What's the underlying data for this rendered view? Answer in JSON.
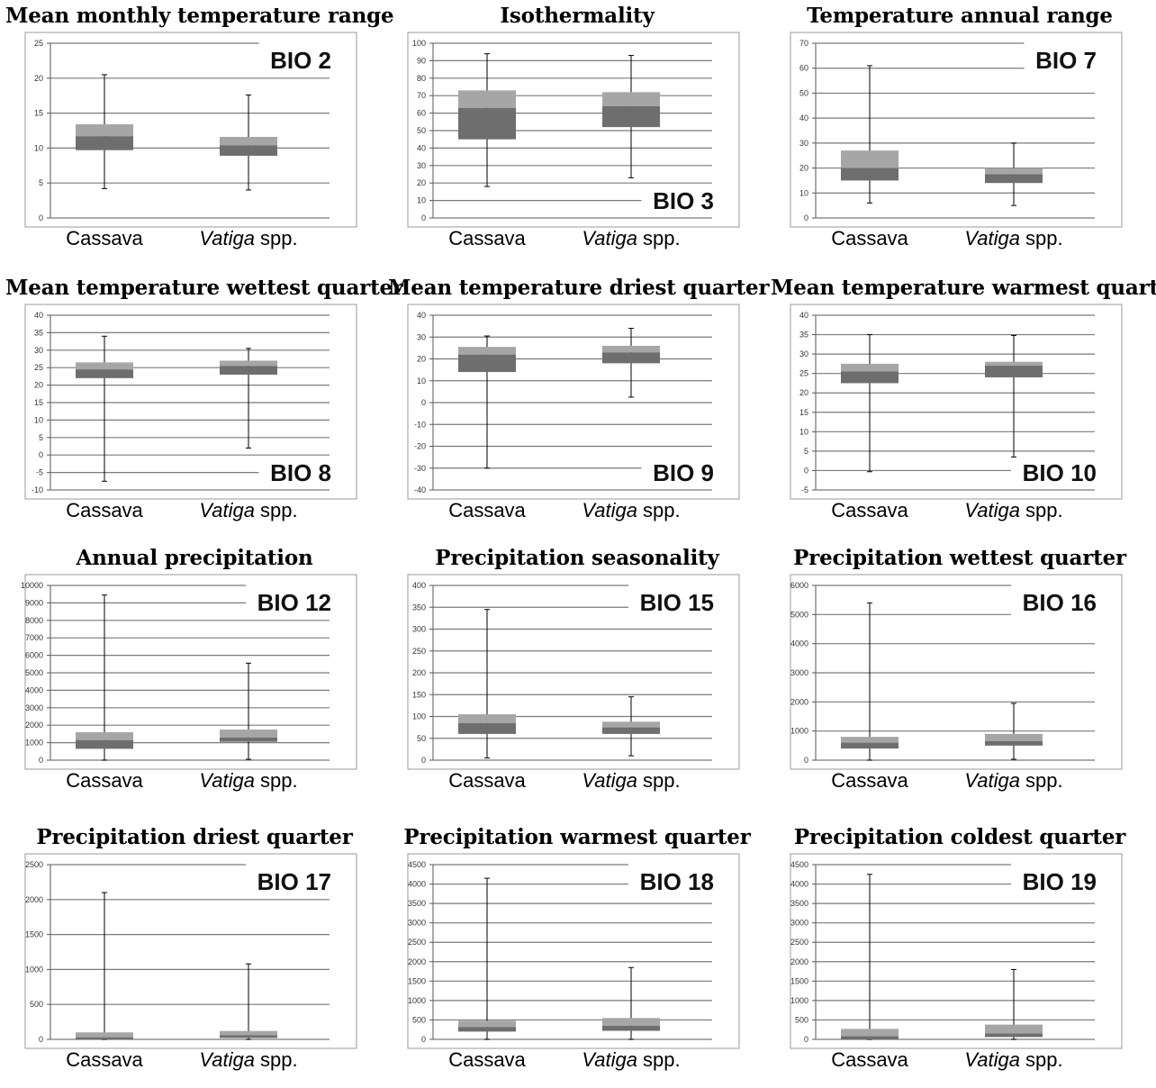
{
  "categories": [
    "Cassava",
    "Vatiga",
    "spp."
  ],
  "colors": {
    "upper_box": "#a6a6a6",
    "lower_box": "#6e6e6e",
    "grid": "#7a7a7a",
    "whisker": "#000000"
  },
  "chart_data": [
    {
      "type": "box",
      "title": "Mean monthly temperature range",
      "label": "BIO 2",
      "label_pos": "top-right",
      "yticks": [
        "0",
        "5",
        "10",
        "15",
        "20",
        "25"
      ],
      "ylim": [
        0,
        25
      ],
      "series": [
        {
          "min": 4.2,
          "q1": 9.7,
          "median": 11.7,
          "q3": 13.4,
          "max": 20.5
        },
        {
          "min": 4.0,
          "q1": 8.9,
          "median": 10.4,
          "q3": 11.6,
          "max": 17.6
        }
      ]
    },
    {
      "type": "box",
      "title": "Isothermality",
      "label": "BIO 3",
      "label_pos": "bottom-right",
      "yticks": [
        "0",
        "10",
        "20",
        "30",
        "40",
        "50",
        "60",
        "70",
        "80",
        "90",
        "100"
      ],
      "ylim": [
        0,
        100
      ],
      "series": [
        {
          "min": 18,
          "q1": 45,
          "median": 63,
          "q3": 73,
          "max": 94
        },
        {
          "min": 23,
          "q1": 52,
          "median": 64,
          "q3": 72,
          "max": 93
        }
      ]
    },
    {
      "type": "box",
      "title": "Temperature annual range",
      "label": "BIO 7",
      "label_pos": "top-right",
      "yticks": [
        "0",
        "10",
        "20",
        "30",
        "40",
        "50",
        "60",
        "70"
      ],
      "ylim": [
        0,
        70
      ],
      "series": [
        {
          "min": 6,
          "q1": 15,
          "median": 20,
          "q3": 27,
          "max": 61
        },
        {
          "min": 5,
          "q1": 14,
          "median": 17.5,
          "q3": 20,
          "max": 30
        }
      ]
    },
    {
      "type": "box",
      "title": "Mean temperature wettest quarter",
      "label": "BIO 8",
      "label_pos": "bottom-right",
      "yticks": [
        "-10",
        "-5",
        "0",
        "5",
        "10",
        "15",
        "20",
        "25",
        "30",
        "35",
        "40"
      ],
      "ylim": [
        -10,
        40
      ],
      "series": [
        {
          "min": -7.5,
          "q1": 22,
          "median": 24.5,
          "q3": 26.5,
          "max": 34
        },
        {
          "min": 2,
          "q1": 23,
          "median": 25.5,
          "q3": 27,
          "max": 30.5
        }
      ]
    },
    {
      "type": "box",
      "title": "Mean temperature driest quarter",
      "label": "BIO 9",
      "label_pos": "bottom-right",
      "yticks": [
        "-40",
        "-30",
        "-20",
        "-10",
        "0",
        "10",
        "20",
        "30",
        "40"
      ],
      "ylim": [
        -40,
        40
      ],
      "series": [
        {
          "min": -30,
          "q1": 14,
          "median": 22,
          "q3": 25.5,
          "max": 30.5
        },
        {
          "min": 2.5,
          "q1": 18,
          "median": 23,
          "q3": 26,
          "max": 34
        }
      ]
    },
    {
      "type": "box",
      "title": "Mean temperature warmest quarter",
      "label": "BIO 10",
      "label_pos": "bottom-right",
      "yticks": [
        "-5",
        "0",
        "5",
        "10",
        "15",
        "20",
        "25",
        "30",
        "35",
        "40"
      ],
      "ylim": [
        -5,
        40
      ],
      "series": [
        {
          "min": -0.3,
          "q1": 22.5,
          "median": 25.5,
          "q3": 27.5,
          "max": 35
        },
        {
          "min": 3.5,
          "q1": 24,
          "median": 27,
          "q3": 28,
          "max": 34.8
        }
      ]
    },
    {
      "type": "box",
      "title": "Annual precipitation",
      "label": "BIO 12",
      "label_pos": "top-right",
      "yticks": [
        "0",
        "1000",
        "2000",
        "3000",
        "4000",
        "5000",
        "6000",
        "7000",
        "8000",
        "9000",
        "10000"
      ],
      "ylim": [
        0,
        10000
      ],
      "series": [
        {
          "min": 0,
          "q1": 650,
          "median": 1150,
          "q3": 1600,
          "max": 9450
        },
        {
          "min": 50,
          "q1": 1050,
          "median": 1300,
          "q3": 1750,
          "max": 5550
        }
      ]
    },
    {
      "type": "box",
      "title": "Precipitation seasonality",
      "label": "BIO 15",
      "label_pos": "top-right",
      "yticks": [
        "0",
        "50",
        "100",
        "150",
        "200",
        "250",
        "300",
        "350",
        "400"
      ],
      "ylim": [
        0,
        400
      ],
      "series": [
        {
          "min": 5,
          "q1": 60,
          "median": 85,
          "q3": 105,
          "max": 345
        },
        {
          "min": 10,
          "q1": 60,
          "median": 75,
          "q3": 88,
          "max": 145
        }
      ]
    },
    {
      "type": "box",
      "title": "Precipitation wettest quarter",
      "label": "BIO 16",
      "label_pos": "top-right",
      "yticks": [
        "0",
        "1000",
        "2000",
        "3000",
        "4000",
        "5000",
        "6000"
      ],
      "ylim": [
        0,
        6000
      ],
      "series": [
        {
          "min": 0,
          "q1": 400,
          "median": 600,
          "q3": 800,
          "max": 5400
        },
        {
          "min": 30,
          "q1": 500,
          "median": 650,
          "q3": 900,
          "max": 1950
        }
      ]
    },
    {
      "type": "box",
      "title": "Precipitation driest quarter",
      "label": "BIO 17",
      "label_pos": "top-right",
      "yticks": [
        "0",
        "500",
        "1000",
        "1500",
        "2000",
        "2500"
      ],
      "ylim": [
        0,
        2500
      ],
      "series": [
        {
          "min": 0,
          "q1": 0,
          "median": 30,
          "q3": 100,
          "max": 2100
        },
        {
          "min": 0,
          "q1": 20,
          "median": 60,
          "q3": 120,
          "max": 1080
        }
      ]
    },
    {
      "type": "box",
      "title": "Precipitation warmest quarter",
      "label": "BIO 18",
      "label_pos": "top-right",
      "yticks": [
        "0",
        "500",
        "1000",
        "1500",
        "2000",
        "2500",
        "3000",
        "3500",
        "4000",
        "4500"
      ],
      "ylim": [
        0,
        4500
      ],
      "series": [
        {
          "min": 0,
          "q1": 200,
          "median": 320,
          "q3": 480,
          "max": 4150
        },
        {
          "min": 0,
          "q1": 220,
          "median": 350,
          "q3": 550,
          "max": 1850
        }
      ]
    },
    {
      "type": "box",
      "title": "Precipitation coldest quarter",
      "label": "BIO 19",
      "label_pos": "top-right",
      "yticks": [
        "0",
        "500",
        "1000",
        "1500",
        "2000",
        "2500",
        "3000",
        "3500",
        "4000",
        "4500"
      ],
      "ylim": [
        0,
        4500
      ],
      "series": [
        {
          "min": 0,
          "q1": 0,
          "median": 80,
          "q3": 270,
          "max": 4250
        },
        {
          "min": 0,
          "q1": 60,
          "median": 150,
          "q3": 380,
          "max": 1800
        }
      ]
    }
  ]
}
